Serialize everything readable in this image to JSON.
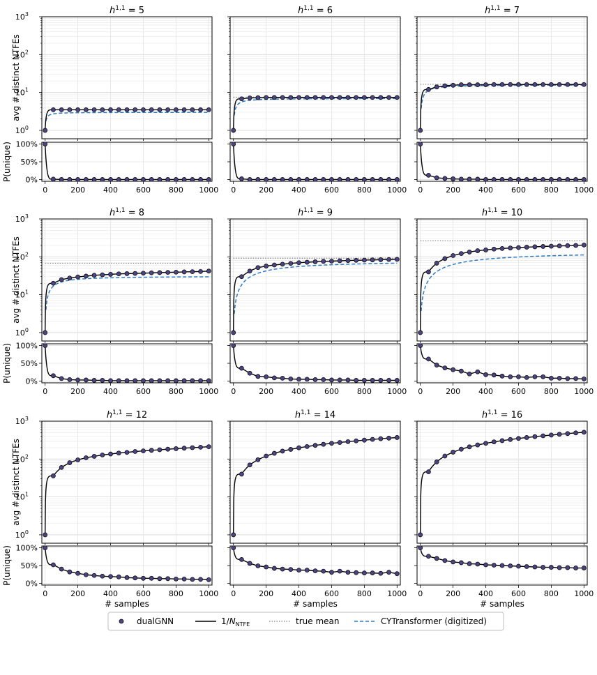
{
  "figure": {
    "legend": {
      "dualgnn": "dualGNN",
      "inverse_prefix": "1/",
      "inverse_n": "N",
      "inverse_sub": "NTFE",
      "true_mean": "true mean",
      "cytransformer": "CYTransformer (digitized)"
    },
    "colors": {
      "marker_fill": "#4b4382",
      "marker_edge": "#111111",
      "inverse_line": "#000000",
      "true_mean_line": "#808080",
      "cytransformer_line": "#2b7bc4"
    }
  },
  "chart_data": {
    "type": "line",
    "title_prefix": "h",
    "title_sup": "1,1",
    "title_eq": " = ",
    "ylabel_top": "avg # distinct NTFEs",
    "ylabel_bottom": "P(unique)",
    "xlabel": "# samples",
    "xlim": [
      -20,
      1020
    ],
    "xticks": [
      0,
      200,
      400,
      600,
      800,
      1000
    ],
    "xtick_labels": [
      "0",
      "200",
      "400",
      "600",
      "800",
      "1000"
    ],
    "top_yscale": "log",
    "top_ylim": [
      0.6,
      1000
    ],
    "top_ytick_base": "10",
    "top_ytick_exps": [
      "0",
      "1",
      "2",
      "3"
    ],
    "bottom_ylim": [
      0,
      100
    ],
    "bottom_yticks": [
      "0%",
      "50%",
      "100%"
    ],
    "grid": true,
    "legend_position": "bottom-center",
    "x": [
      0,
      50,
      100,
      150,
      200,
      250,
      300,
      350,
      400,
      450,
      500,
      550,
      600,
      650,
      700,
      750,
      800,
      850,
      900,
      950,
      1000
    ],
    "panels": [
      {
        "h11": "5",
        "true_mean": null,
        "avg": [
          1,
          3.5,
          3.5,
          3.5,
          3.5,
          3.5,
          3.5,
          3.5,
          3.5,
          3.5,
          3.5,
          3.5,
          3.5,
          3.5,
          3.5,
          3.5,
          3.5,
          3.5,
          3.5,
          3.5,
          3.5
        ],
        "cyt": {
          "limit": 3.0,
          "half": 8
        },
        "p_unique": [
          100,
          1,
          0,
          0,
          0,
          0,
          0,
          0,
          0,
          0,
          0,
          0,
          0,
          0,
          0,
          0,
          0,
          0,
          0,
          0,
          0
        ]
      },
      {
        "h11": "6",
        "true_mean": 7.5,
        "avg": [
          1,
          6.8,
          7.2,
          7.3,
          7.4,
          7.4,
          7.4,
          7.4,
          7.4,
          7.4,
          7.4,
          7.4,
          7.4,
          7.4,
          7.4,
          7.4,
          7.4,
          7.4,
          7.4,
          7.4,
          7.4
        ],
        "cyt": {
          "limit": 7.0,
          "half": 15
        },
        "p_unique": [
          100,
          2,
          0,
          0,
          0,
          0,
          0,
          0,
          0,
          0,
          0,
          0,
          0,
          0,
          0,
          0,
          0,
          0,
          0,
          0,
          0
        ]
      },
      {
        "h11": "7",
        "true_mean": 16.5,
        "avg": [
          1,
          12,
          14,
          15,
          15.5,
          16,
          16,
          16,
          16,
          16.2,
          16.2,
          16.2,
          16.2,
          16.2,
          16.2,
          16.2,
          16.2,
          16.2,
          16.2,
          16.2,
          16.2
        ],
        "cyt": {
          "limit": 16.0,
          "half": 22
        },
        "p_unique": [
          100,
          12,
          5,
          3,
          2,
          1,
          1,
          1,
          0,
          0,
          0,
          0,
          0,
          0,
          0,
          0,
          0,
          0,
          0,
          0,
          0
        ]
      },
      {
        "h11": "8",
        "true_mean": 68,
        "avg": [
          1,
          20,
          25,
          27.5,
          29.5,
          31,
          32.5,
          33.5,
          34.5,
          35.5,
          36,
          36.5,
          37,
          37.8,
          38.3,
          38.8,
          39.3,
          40,
          40.5,
          41,
          42
        ],
        "cyt": {
          "limit": 31.0,
          "half": 45
        },
        "p_unique": [
          100,
          15,
          7,
          4,
          3,
          3,
          2,
          2,
          1,
          1,
          1,
          1,
          1,
          1,
          1,
          1,
          1,
          1,
          1,
          1,
          1
        ]
      },
      {
        "h11": "9",
        "true_mean": 92,
        "avg": [
          1,
          30,
          42,
          52,
          57,
          61,
          64,
          67,
          70,
          72,
          74,
          76,
          77,
          78.5,
          80,
          81,
          82,
          83,
          84,
          85,
          86
        ],
        "cyt": {
          "limit": 80.0,
          "half": 180
        },
        "p_unique": [
          100,
          36,
          22,
          13,
          12,
          9,
          8,
          6,
          5,
          5,
          4,
          4,
          3,
          3,
          3,
          2,
          2,
          2,
          2,
          2,
          2
        ]
      },
      {
        "h11": "10",
        "true_mean": 265,
        "avg": [
          1,
          40,
          68,
          90,
          108,
          122,
          134,
          145,
          152,
          160,
          166,
          171,
          176,
          180,
          184,
          188,
          191,
          194,
          197,
          200,
          205
        ],
        "cyt": {
          "limit": 140.0,
          "half": 250
        },
        "p_unique": [
          100,
          62,
          45,
          37,
          32,
          28,
          20,
          26,
          18,
          17,
          14,
          12,
          12,
          10,
          12,
          12,
          8,
          8,
          7,
          7,
          6
        ]
      },
      {
        "h11": "12",
        "true_mean": null,
        "avg": [
          1,
          36,
          60,
          80,
          95,
          108,
          118,
          128,
          136,
          144,
          150,
          158,
          164,
          170,
          176,
          182,
          188,
          194,
          200,
          205,
          212
        ],
        "cyt": null,
        "p_unique": [
          100,
          52,
          40,
          32,
          28,
          24,
          22,
          20,
          19,
          18,
          16,
          15,
          14,
          14,
          13,
          13,
          12,
          12,
          11,
          11,
          10
        ]
      },
      {
        "h11": "14",
        "true_mean": null,
        "avg": [
          1,
          40,
          70,
          96,
          120,
          142,
          162,
          180,
          198,
          214,
          230,
          245,
          260,
          274,
          288,
          302,
          316,
          330,
          344,
          357,
          370
        ],
        "cyt": null,
        "p_unique": [
          100,
          67,
          56,
          49,
          46,
          42,
          40,
          39,
          37,
          37,
          35,
          34,
          31,
          34,
          31,
          30,
          29,
          29,
          28,
          31,
          27
        ]
      },
      {
        "h11": "16",
        "true_mean": null,
        "avg": [
          1,
          46,
          84,
          120,
          152,
          182,
          210,
          236,
          260,
          284,
          306,
          328,
          350,
          370,
          390,
          410,
          430,
          450,
          470,
          490,
          510
        ],
        "cyt": null,
        "p_unique": [
          100,
          76,
          70,
          64,
          60,
          58,
          55,
          54,
          52,
          51,
          50,
          49,
          48,
          47,
          46,
          45,
          45,
          44,
          44,
          43,
          43
        ]
      }
    ]
  }
}
